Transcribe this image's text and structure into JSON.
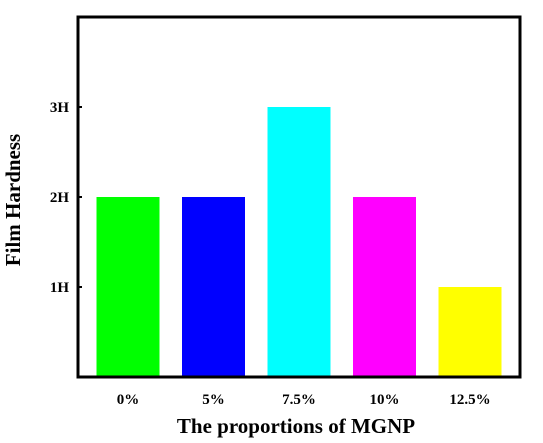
{
  "chart_data": {
    "type": "bar",
    "categories": [
      "0%",
      "5%",
      "7.5%",
      "10%",
      "12.5%"
    ],
    "values": [
      2,
      2,
      3,
      2,
      1
    ],
    "colors": [
      "#00ff00",
      "#0000ff",
      "#00ffff",
      "#ff00ff",
      "#ffff00"
    ],
    "title": "",
    "xlabel": "The proportions of MGNP",
    "ylabel": "Film Hardness",
    "ylim": [
      0,
      4
    ],
    "yticks": [
      {
        "value": 1,
        "label": "1H"
      },
      {
        "value": 2,
        "label": "2H"
      },
      {
        "value": 3,
        "label": "3H"
      }
    ],
    "grid": false,
    "legend": "none"
  }
}
